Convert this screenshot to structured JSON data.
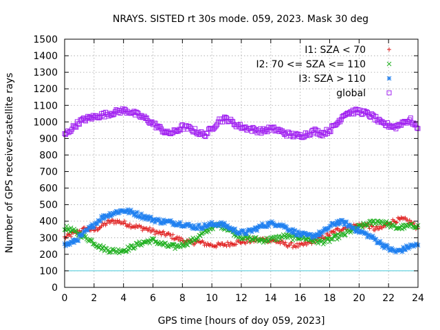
{
  "chart_data": {
    "type": "scatter",
    "title": "NRAYS. SISTED rt 30s mode. 059, 2023. Mask 30 deg",
    "xlabel": "GPS time [hours of doy 059, 2023]",
    "ylabel": "Number of GPS receiver-satellite rays",
    "xlim": [
      0,
      24
    ],
    "ylim": [
      0,
      1500
    ],
    "xticks": [
      0,
      2,
      4,
      6,
      8,
      10,
      12,
      14,
      16,
      18,
      20,
      22,
      24
    ],
    "xtick_labels": [
      "0",
      "2",
      "4",
      "6",
      "8",
      "10",
      "12",
      "14",
      "16",
      "18",
      "20",
      "22",
      "24"
    ],
    "yticks": [
      0,
      100,
      200,
      300,
      400,
      500,
      600,
      700,
      800,
      900,
      1000,
      1100,
      1200,
      1300,
      1400,
      1500
    ],
    "ytick_labels": [
      "0",
      "100",
      "200",
      "300",
      "400",
      "500",
      "600",
      "700",
      "800",
      "900",
      "1000",
      "1100",
      "1200",
      "1300",
      "1400",
      "1500"
    ],
    "grid": true,
    "legend_position": "top-right",
    "reference_line": {
      "y": 100,
      "color": "#40c8d8"
    },
    "series": [
      {
        "name": "I1: SZA < 70",
        "marker": "+",
        "color": "#e02020",
        "x": [
          0,
          0.5,
          1,
          1.5,
          2,
          2.5,
          3,
          3.5,
          4,
          4.5,
          5,
          5.5,
          6,
          6.5,
          7,
          7.5,
          8,
          8.5,
          9,
          9.5,
          10,
          10.5,
          11,
          11.5,
          12,
          12.5,
          13,
          13.5,
          14,
          14.5,
          15,
          15.5,
          16,
          16.5,
          17,
          17.5,
          18,
          18.5,
          19,
          19.5,
          20,
          20.5,
          21,
          21.5,
          22,
          22.5,
          23,
          23.5,
          24
        ],
        "y": [
          300,
          320,
          340,
          355,
          345,
          370,
          395,
          400,
          390,
          375,
          365,
          355,
          340,
          325,
          320,
          300,
          285,
          270,
          275,
          265,
          255,
          255,
          260,
          270,
          275,
          280,
          285,
          290,
          285,
          275,
          260,
          255,
          250,
          265,
          285,
          300,
          320,
          345,
          360,
          370,
          375,
          380,
          355,
          355,
          390,
          405,
          410,
          395,
          355
        ]
      },
      {
        "name": "I2: 70 <= SZA <= 110",
        "marker": "x",
        "color": "#20b020",
        "x": [
          0,
          0.5,
          1,
          1.5,
          2,
          2.5,
          3,
          3.5,
          4,
          4.5,
          5,
          5.5,
          6,
          6.5,
          7,
          7.5,
          8,
          8.5,
          9,
          9.5,
          10,
          10.5,
          11,
          11.5,
          12,
          12.5,
          13,
          13.5,
          14,
          14.5,
          15,
          15.5,
          16,
          16.5,
          17,
          17.5,
          18,
          18.5,
          19,
          19.5,
          20,
          20.5,
          21,
          21.5,
          22,
          22.5,
          23,
          23.5,
          24
        ],
        "y": [
          360,
          345,
          320,
          300,
          270,
          240,
          225,
          220,
          225,
          240,
          260,
          275,
          285,
          265,
          250,
          245,
          260,
          275,
          300,
          330,
          365,
          375,
          360,
          330,
          305,
          295,
          290,
          285,
          290,
          300,
          310,
          300,
          305,
          295,
          280,
          275,
          285,
          305,
          320,
          345,
          365,
          380,
          395,
          400,
          380,
          360,
          365,
          370,
          375
        ]
      },
      {
        "name": "I3: SZA > 110",
        "marker": "*",
        "color": "#2080f0",
        "x": [
          0,
          0.5,
          1,
          1.5,
          2,
          2.5,
          3,
          3.5,
          4,
          4.5,
          5,
          5.5,
          6,
          6.5,
          7,
          7.5,
          8,
          8.5,
          9,
          9.5,
          10,
          10.5,
          11,
          11.5,
          12,
          12.5,
          13,
          13.5,
          14,
          14.5,
          15,
          15.5,
          16,
          16.5,
          17,
          17.5,
          18,
          18.5,
          19,
          19.5,
          20,
          20.5,
          21,
          21.5,
          22,
          22.5,
          23,
          23.5,
          24
        ],
        "y": [
          255,
          270,
          300,
          340,
          380,
          420,
          440,
          455,
          465,
          455,
          440,
          425,
          410,
          400,
          395,
          390,
          385,
          370,
          365,
          370,
          380,
          385,
          370,
          345,
          330,
          335,
          355,
          375,
          385,
          385,
          365,
          340,
          320,
          310,
          315,
          330,
          365,
          395,
          390,
          365,
          340,
          320,
          295,
          265,
          235,
          215,
          230,
          250,
          255
        ]
      },
      {
        "name": "global",
        "marker": "square",
        "color": "#a020f0",
        "x": [
          0,
          0.5,
          1,
          1.5,
          2,
          2.5,
          3,
          3.5,
          4,
          4.5,
          5,
          5.5,
          6,
          6.5,
          7,
          7.5,
          8,
          8.5,
          9,
          9.5,
          10,
          10.5,
          11,
          11.5,
          12,
          12.5,
          13,
          13.5,
          14,
          14.5,
          15,
          15.5,
          16,
          16.5,
          17,
          17.5,
          18,
          18.5,
          19,
          19.5,
          20,
          20.5,
          21,
          21.5,
          22,
          22.5,
          23,
          23.5,
          24
        ],
        "y": [
          920,
          960,
          1000,
          1020,
          1030,
          1040,
          1050,
          1060,
          1070,
          1060,
          1040,
          1020,
          990,
          960,
          930,
          940,
          970,
          960,
          940,
          920,
          960,
          1010,
          1020,
          990,
          970,
          960,
          950,
          945,
          960,
          950,
          930,
          920,
          915,
          930,
          945,
          930,
          950,
          990,
          1050,
          1060,
          1065,
          1050,
          1030,
          990,
          980,
          970,
          1000,
          1010,
          960
        ]
      }
    ]
  }
}
